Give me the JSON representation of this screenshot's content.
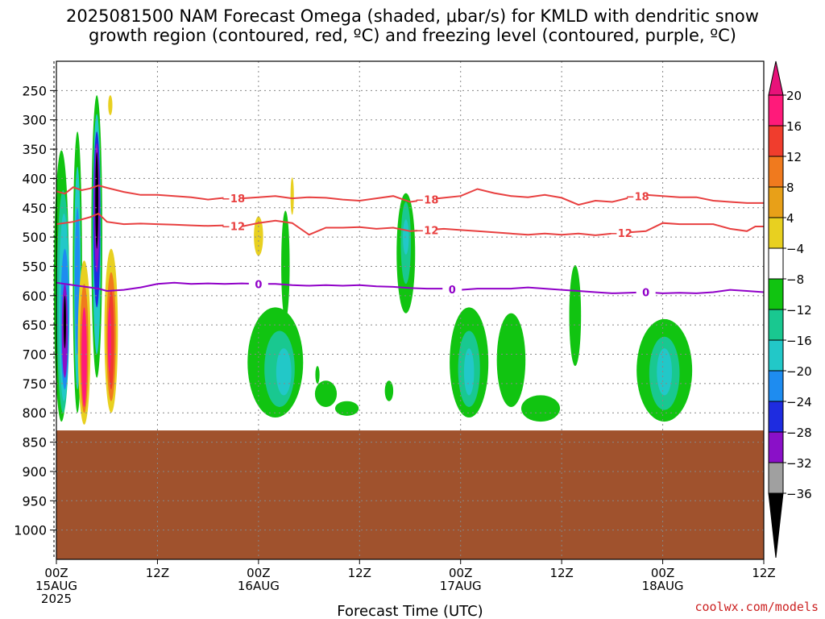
{
  "header": {
    "title_line1": "2025081500 NAM Forecast Omega (shaded, μbar/s) for KMLD with dendritic snow",
    "title_line2": "growth region (contoured, red, ºC) and freezing level (contoured, purple, ºC)"
  },
  "footer": {
    "credit": "coolwx.com/models"
  },
  "chart_data": {
    "type": "time-height contour",
    "title": "2025081500 NAM Forecast Omega (shaded, μbar/s) for KMLD with dendritic snow growth region (contoured, red, ºC) and freezing level (contoured, purple, ºC)",
    "xlabel": "Forecast Time (UTC)",
    "x_range_hours": [
      0,
      84
    ],
    "x_ticks": [
      {
        "hour": 0,
        "label": "00Z",
        "sub": "15AUG",
        "sub2": "2025"
      },
      {
        "hour": 12,
        "label": "12Z",
        "sub": "",
        "sub2": ""
      },
      {
        "hour": 24,
        "label": "00Z",
        "sub": "16AUG",
        "sub2": ""
      },
      {
        "hour": 36,
        "label": "12Z",
        "sub": "",
        "sub2": ""
      },
      {
        "hour": 48,
        "label": "00Z",
        "sub": "17AUG",
        "sub2": ""
      },
      {
        "hour": 60,
        "label": "12Z",
        "sub": "",
        "sub2": ""
      },
      {
        "hour": 72,
        "label": "00Z",
        "sub": "18AUG",
        "sub2": ""
      },
      {
        "hour": 84,
        "label": "12Z",
        "sub": "",
        "sub2": ""
      }
    ],
    "y_range_mb": [
      200,
      1050
    ],
    "y_ticks": [
      250,
      300,
      350,
      400,
      450,
      500,
      550,
      600,
      650,
      700,
      750,
      800,
      850,
      900,
      950,
      1000
    ],
    "grid": true,
    "colorbar": {
      "labels": [
        "20",
        "16",
        "12",
        "8",
        "4",
        "−4",
        "−8",
        "−12",
        "−16",
        "−20",
        "−24",
        "−28",
        "−32",
        "−36"
      ],
      "colors": [
        "#ff1a7a",
        "#f03d2d",
        "#f07a1e",
        "#e8a018",
        "#e8d020",
        "#ffffff",
        "#11c411",
        "#19c890",
        "#22c8c8",
        "#1e8cf0",
        "#1e2ce0",
        "#8a10c8",
        "#a0a0a0",
        "#000000"
      ],
      "top_color": "#e8127a"
    },
    "terrain": {
      "level_mb": 830,
      "color": "#a0522d"
    },
    "contours": [
      {
        "name": "dgz_minus18",
        "value": -18,
        "label": "−18",
        "color": "#e84040",
        "points": [
          [
            0,
            422
          ],
          [
            1,
            426
          ],
          [
            2,
            415
          ],
          [
            3,
            420
          ],
          [
            4,
            417
          ],
          [
            5,
            412
          ],
          [
            6,
            416
          ],
          [
            8,
            423
          ],
          [
            10,
            428
          ],
          [
            12,
            428
          ],
          [
            14,
            430
          ],
          [
            16,
            432
          ],
          [
            18,
            436
          ],
          [
            20,
            433
          ],
          [
            22,
            434
          ],
          [
            24,
            432
          ],
          [
            26,
            430
          ],
          [
            28,
            434
          ],
          [
            30,
            432
          ],
          [
            32,
            433
          ],
          [
            34,
            436
          ],
          [
            36,
            438
          ],
          [
            38,
            434
          ],
          [
            40,
            430
          ],
          [
            42,
            440
          ],
          [
            44,
            436
          ],
          [
            46,
            433
          ],
          [
            48,
            430
          ],
          [
            50,
            418
          ],
          [
            52,
            425
          ],
          [
            54,
            430
          ],
          [
            56,
            432
          ],
          [
            58,
            428
          ],
          [
            60,
            433
          ],
          [
            62,
            445
          ],
          [
            64,
            438
          ],
          [
            66,
            440
          ],
          [
            68,
            433
          ],
          [
            70,
            428
          ],
          [
            72,
            430
          ],
          [
            74,
            432
          ],
          [
            76,
            432
          ],
          [
            78,
            438
          ],
          [
            80,
            440
          ],
          [
            82,
            442
          ],
          [
            84,
            442
          ]
        ],
        "label_hours": [
          21,
          44,
          69
        ]
      },
      {
        "name": "dgz_minus12",
        "value": -12,
        "label": "−12",
        "color": "#e84040",
        "points": [
          [
            0,
            478
          ],
          [
            2,
            474
          ],
          [
            4,
            466
          ],
          [
            5,
            460
          ],
          [
            6,
            474
          ],
          [
            8,
            478
          ],
          [
            10,
            477
          ],
          [
            12,
            478
          ],
          [
            14,
            479
          ],
          [
            16,
            480
          ],
          [
            18,
            481
          ],
          [
            20,
            480
          ],
          [
            22,
            482
          ],
          [
            24,
            476
          ],
          [
            26,
            472
          ],
          [
            28,
            476
          ],
          [
            30,
            496
          ],
          [
            32,
            484
          ],
          [
            34,
            484
          ],
          [
            36,
            483
          ],
          [
            38,
            486
          ],
          [
            40,
            484
          ],
          [
            42,
            490
          ],
          [
            44,
            488
          ],
          [
            46,
            486
          ],
          [
            48,
            488
          ],
          [
            50,
            490
          ],
          [
            52,
            492
          ],
          [
            54,
            494
          ],
          [
            56,
            496
          ],
          [
            58,
            494
          ],
          [
            60,
            496
          ],
          [
            62,
            494
          ],
          [
            64,
            497
          ],
          [
            66,
            494
          ],
          [
            68,
            492
          ],
          [
            70,
            490
          ],
          [
            72,
            476
          ],
          [
            74,
            478
          ],
          [
            76,
            478
          ],
          [
            78,
            478
          ],
          [
            80,
            486
          ],
          [
            82,
            490
          ],
          [
            83,
            482
          ],
          [
            84,
            482
          ]
        ],
        "label_hours": [
          21,
          44,
          67
        ]
      },
      {
        "name": "freezing_level",
        "value": 0,
        "label": "0",
        "color": "#9000c8",
        "points": [
          [
            0,
            578
          ],
          [
            2,
            582
          ],
          [
            4,
            586
          ],
          [
            5,
            588
          ],
          [
            6,
            592
          ],
          [
            8,
            590
          ],
          [
            10,
            586
          ],
          [
            12,
            580
          ],
          [
            14,
            578
          ],
          [
            16,
            580
          ],
          [
            18,
            579
          ],
          [
            20,
            580
          ],
          [
            22,
            579
          ],
          [
            24,
            580
          ],
          [
            26,
            580
          ],
          [
            28,
            582
          ],
          [
            30,
            583
          ],
          [
            32,
            582
          ],
          [
            34,
            583
          ],
          [
            36,
            582
          ],
          [
            38,
            584
          ],
          [
            40,
            585
          ],
          [
            42,
            587
          ],
          [
            44,
            588
          ],
          [
            46,
            588
          ],
          [
            48,
            590
          ],
          [
            50,
            588
          ],
          [
            52,
            588
          ],
          [
            54,
            588
          ],
          [
            56,
            586
          ],
          [
            58,
            588
          ],
          [
            60,
            590
          ],
          [
            62,
            592
          ],
          [
            64,
            594
          ],
          [
            66,
            596
          ],
          [
            68,
            595
          ],
          [
            70,
            594
          ],
          [
            72,
            596
          ],
          [
            74,
            595
          ],
          [
            76,
            596
          ],
          [
            78,
            594
          ],
          [
            80,
            590
          ],
          [
            82,
            592
          ],
          [
            84,
            594
          ]
        ],
        "label_hours": [
          24,
          47,
          70
        ]
      }
    ],
    "shaded_regions": [
      {
        "name": "omega-left-green-column",
        "color": "#11c411",
        "hour": 0.6,
        "half_width_h": 0.9,
        "top_mb": 352,
        "bottom_mb": 815
      },
      {
        "name": "omega-left-teal",
        "color": "#19c890",
        "hour": 0.8,
        "half_width_h": 0.75,
        "top_mb": 420,
        "bottom_mb": 800
      },
      {
        "name": "omega-left-cyan",
        "color": "#22c8c8",
        "hour": 0.9,
        "half_width_h": 0.6,
        "top_mb": 460,
        "bottom_mb": 780
      },
      {
        "name": "omega-left-blue",
        "color": "#1e8cf0",
        "hour": 1.0,
        "half_width_h": 0.5,
        "top_mb": 520,
        "bottom_mb": 760
      },
      {
        "name": "omega-left-purple",
        "color": "#8a10c8",
        "hour": 1.0,
        "half_width_h": 0.35,
        "top_mb": 580,
        "bottom_mb": 740
      },
      {
        "name": "omega-left-black",
        "color": "#000000",
        "hour": 1.0,
        "half_width_h": 0.15,
        "top_mb": 600,
        "bottom_mb": 690
      },
      {
        "name": "omega-second-green-column",
        "color": "#11c411",
        "hour": 2.5,
        "half_width_h": 0.55,
        "top_mb": 320,
        "bottom_mb": 800
      },
      {
        "name": "omega-second-cyan",
        "color": "#22c8c8",
        "hour": 2.5,
        "half_width_h": 0.4,
        "top_mb": 380,
        "bottom_mb": 760
      },
      {
        "name": "omega-second-blue",
        "color": "#1e8cf0",
        "hour": 2.5,
        "half_width_h": 0.3,
        "top_mb": 450,
        "bottom_mb": 700
      },
      {
        "name": "omega-main-green-column",
        "color": "#11c411",
        "hour": 4.8,
        "half_width_h": 0.65,
        "top_mb": 258,
        "bottom_mb": 740
      },
      {
        "name": "omega-main-cyan",
        "color": "#22c8c8",
        "hour": 4.8,
        "half_width_h": 0.5,
        "top_mb": 290,
        "bottom_mb": 700
      },
      {
        "name": "omega-main-blue",
        "color": "#1e2ce0",
        "hour": 4.8,
        "half_width_h": 0.42,
        "top_mb": 320,
        "bottom_mb": 620
      },
      {
        "name": "omega-main-purple",
        "color": "#8a10c8",
        "hour": 4.8,
        "half_width_h": 0.32,
        "top_mb": 340,
        "bottom_mb": 560
      },
      {
        "name": "omega-main-black",
        "color": "#000000",
        "hour": 4.8,
        "half_width_h": 0.18,
        "top_mb": 355,
        "bottom_mb": 520
      },
      {
        "name": "omega-pos-yellow-1",
        "color": "#e8d020",
        "hour": 3.3,
        "half_width_h": 0.75,
        "top_mb": 540,
        "bottom_mb": 820
      },
      {
        "name": "omega-pos-orange-1",
        "color": "#f07a1e",
        "hour": 3.3,
        "half_width_h": 0.5,
        "top_mb": 580,
        "bottom_mb": 800
      },
      {
        "name": "omega-pos-pink-1",
        "color": "#ff1a7a",
        "hour": 3.3,
        "half_width_h": 0.32,
        "top_mb": 620,
        "bottom_mb": 790
      },
      {
        "name": "omega-pos-yellow-2",
        "color": "#e8d020",
        "hour": 6.5,
        "half_width_h": 0.8,
        "top_mb": 520,
        "bottom_mb": 800
      },
      {
        "name": "omega-pos-orange-2",
        "color": "#f07a1e",
        "hour": 6.5,
        "half_width_h": 0.55,
        "top_mb": 560,
        "bottom_mb": 780
      },
      {
        "name": "omega-pos-red-2",
        "color": "#f03d2d",
        "hour": 6.5,
        "half_width_h": 0.35,
        "top_mb": 590,
        "bottom_mb": 760
      },
      {
        "name": "omega-pos-pink-2",
        "color": "#ff1a7a",
        "hour": 6.3,
        "half_width_h": 0.2,
        "top_mb": 620,
        "bottom_mb": 730
      },
      {
        "name": "omega-pos-yellow-top",
        "color": "#e8d020",
        "hour": 6.4,
        "half_width_h": 0.25,
        "top_mb": 258,
        "bottom_mb": 292
      },
      {
        "name": "omega-pos-yellow-16aug-a",
        "color": "#e8d020",
        "hour": 24.0,
        "half_width_h": 0.55,
        "top_mb": 465,
        "bottom_mb": 532
      },
      {
        "name": "omega-pos-yellow-16aug-b",
        "color": "#e8d020",
        "hour": 28.0,
        "half_width_h": 0.2,
        "top_mb": 398,
        "bottom_mb": 462
      },
      {
        "name": "omega-16aug-green-top",
        "color": "#11c411",
        "hour": 27.2,
        "half_width_h": 0.5,
        "top_mb": 455,
        "bottom_mb": 640
      },
      {
        "name": "omega-16aug-green-base",
        "color": "#11c411",
        "hour": 26.0,
        "half_width_h": 3.3,
        "top_mb": 620,
        "bottom_mb": 808
      },
      {
        "name": "omega-16aug-teal",
        "color": "#19c890",
        "hour": 26.5,
        "half_width_h": 1.8,
        "top_mb": 660,
        "bottom_mb": 790
      },
      {
        "name": "omega-16aug-cyan",
        "color": "#22c8c8",
        "hour": 27.0,
        "half_width_h": 0.9,
        "top_mb": 690,
        "bottom_mb": 770
      },
      {
        "name": "omega-16aug-scatter-1",
        "color": "#11c411",
        "hour": 32.0,
        "half_width_h": 1.3,
        "top_mb": 745,
        "bottom_mb": 790
      },
      {
        "name": "omega-16aug-scatter-2",
        "color": "#11c411",
        "hour": 34.5,
        "half_width_h": 1.4,
        "top_mb": 780,
        "bottom_mb": 805
      },
      {
        "name": "omega-16aug-scatter-3",
        "color": "#11c411",
        "hour": 39.5,
        "half_width_h": 0.5,
        "top_mb": 745,
        "bottom_mb": 780
      },
      {
        "name": "omega-16aug-scatter-4",
        "color": "#11c411",
        "hour": 31.0,
        "half_width_h": 0.25,
        "top_mb": 720,
        "bottom_mb": 750
      },
      {
        "name": "omega-1612-green",
        "color": "#11c411",
        "hour": 41.5,
        "half_width_h": 1.1,
        "top_mb": 425,
        "bottom_mb": 630
      },
      {
        "name": "omega-1612-teal",
        "color": "#19c890",
        "hour": 41.5,
        "half_width_h": 0.6,
        "top_mb": 440,
        "bottom_mb": 580
      },
      {
        "name": "omega-1612-cyan",
        "color": "#22c8c8",
        "hour": 41.5,
        "half_width_h": 0.35,
        "top_mb": 470,
        "bottom_mb": 530
      },
      {
        "name": "omega-17aug-green-a",
        "color": "#11c411",
        "hour": 49.0,
        "half_width_h": 2.3,
        "top_mb": 620,
        "bottom_mb": 808
      },
      {
        "name": "omega-17aug-teal-a",
        "color": "#19c890",
        "hour": 49.0,
        "half_width_h": 1.3,
        "top_mb": 660,
        "bottom_mb": 790
      },
      {
        "name": "omega-17aug-cyan-a",
        "color": "#22c8c8",
        "hour": 49.0,
        "half_width_h": 0.6,
        "top_mb": 690,
        "bottom_mb": 770
      },
      {
        "name": "omega-17aug-green-b",
        "color": "#11c411",
        "hour": 54.0,
        "half_width_h": 1.7,
        "top_mb": 630,
        "bottom_mb": 790
      },
      {
        "name": "omega-17aug-green-c",
        "color": "#11c411",
        "hour": 57.5,
        "half_width_h": 2.3,
        "top_mb": 770,
        "bottom_mb": 815
      },
      {
        "name": "omega-1712-green",
        "color": "#11c411",
        "hour": 61.6,
        "half_width_h": 0.7,
        "top_mb": 548,
        "bottom_mb": 720
      },
      {
        "name": "omega-18aug-green",
        "color": "#11c411",
        "hour": 72.2,
        "half_width_h": 3.3,
        "top_mb": 640,
        "bottom_mb": 815
      },
      {
        "name": "omega-18aug-teal",
        "color": "#19c890",
        "hour": 72.2,
        "half_width_h": 1.8,
        "top_mb": 670,
        "bottom_mb": 795
      },
      {
        "name": "omega-18aug-cyan",
        "color": "#22c8c8",
        "hour": 72.2,
        "half_width_h": 0.9,
        "top_mb": 690,
        "bottom_mb": 770
      }
    ]
  }
}
